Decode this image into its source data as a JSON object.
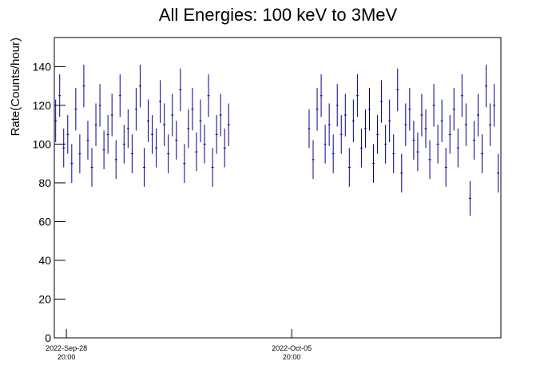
{
  "chart_data": {
    "type": "errorbar",
    "title": "All Energies:  100 keV to 3MeV",
    "ylabel": "Rate(Counts/hour)",
    "color": "#00008b",
    "x": [
      "2022-Sep-28 12:00",
      "2022-Sep-28 15:00",
      "2022-Sep-28 18:00",
      "2022-Sep-28 21:00",
      "2022-Sep-29 00:00",
      "2022-Sep-29 03:00",
      "2022-Sep-29 06:00",
      "2022-Sep-29 09:00",
      "2022-Sep-29 12:00",
      "2022-Sep-29 15:00",
      "2022-Sep-29 18:00",
      "2022-Sep-29 21:00",
      "2022-Sep-30 00:00",
      "2022-Sep-30 03:00",
      "2022-Sep-30 06:00",
      "2022-Sep-30 09:00",
      "2022-Sep-30 12:00",
      "2022-Sep-30 15:00",
      "2022-Sep-30 18:00",
      "2022-Sep-30 21:00",
      "2022-Oct-01 00:00",
      "2022-Oct-01 03:00",
      "2022-Oct-01 06:00",
      "2022-Oct-01 09:00",
      "2022-Oct-01 12:00",
      "2022-Oct-01 15:00",
      "2022-Oct-01 18:00",
      "2022-Oct-01 21:00",
      "2022-Oct-02 00:00",
      "2022-Oct-02 03:00",
      "2022-Oct-02 06:00",
      "2022-Oct-02 09:00",
      "2022-Oct-02 12:00",
      "2022-Oct-02 15:00",
      "2022-Oct-02 18:00",
      "2022-Oct-02 21:00",
      "2022-Oct-03 00:00",
      "2022-Oct-03 03:00",
      "2022-Oct-03 06:00",
      "2022-Oct-03 09:00",
      "2022-Oct-03 12:00",
      "2022-Oct-03 15:00",
      "2022-Oct-03 18:00",
      "2022-Oct-03 21:00",
      "2022-Oct-06 09:00",
      "2022-Oct-06 12:00",
      "2022-Oct-06 15:00",
      "2022-Oct-06 18:00",
      "2022-Oct-06 21:00",
      "2022-Oct-07 00:00",
      "2022-Oct-07 03:00",
      "2022-Oct-07 06:00",
      "2022-Oct-07 09:00",
      "2022-Oct-07 12:00",
      "2022-Oct-07 15:00",
      "2022-Oct-07 18:00",
      "2022-Oct-07 21:00",
      "2022-Oct-08 00:00",
      "2022-Oct-08 03:00",
      "2022-Oct-08 06:00",
      "2022-Oct-08 09:00",
      "2022-Oct-08 12:00",
      "2022-Oct-08 15:00",
      "2022-Oct-08 18:00",
      "2022-Oct-08 21:00",
      "2022-Oct-09 00:00",
      "2022-Oct-09 03:00",
      "2022-Oct-09 06:00",
      "2022-Oct-09 09:00",
      "2022-Oct-09 12:00",
      "2022-Oct-09 15:00",
      "2022-Oct-09 18:00",
      "2022-Oct-09 21:00",
      "2022-Oct-10 00:00",
      "2022-Oct-10 03:00",
      "2022-Oct-10 06:00",
      "2022-Oct-10 09:00",
      "2022-Oct-10 12:00",
      "2022-Oct-10 15:00",
      "2022-Oct-10 18:00",
      "2022-Oct-10 21:00",
      "2022-Oct-11 00:00",
      "2022-Oct-11 03:00",
      "2022-Oct-11 06:00",
      "2022-Oct-11 09:00",
      "2022-Oct-11 12:00",
      "2022-Oct-11 15:00",
      "2022-Oct-11 18:00",
      "2022-Oct-11 21:00",
      "2022-Oct-12 00:00",
      "2022-Oct-12 03:00",
      "2022-Oct-12 06:00"
    ],
    "values": [
      112,
      125,
      98,
      105,
      90,
      118,
      95,
      130,
      102,
      88,
      110,
      120,
      97,
      105,
      115,
      92,
      125,
      100,
      108,
      95,
      118,
      130,
      88,
      112,
      105,
      98,
      122,
      110,
      95,
      115,
      102,
      128,
      90,
      108,
      118,
      96,
      112,
      100,
      125,
      88,
      105,
      115,
      98,
      110,
      108,
      92,
      118,
      125,
      100,
      110,
      95,
      120,
      105,
      115,
      88,
      112,
      125,
      98,
      108,
      118,
      90,
      105,
      122,
      100,
      112,
      95,
      128,
      85,
      110,
      118,
      102,
      96,
      115,
      108,
      92,
      120,
      100,
      112,
      88,
      105,
      118,
      98,
      125,
      110,
      72,
      102,
      115,
      95,
      130,
      110,
      120,
      85
    ],
    "errors": [
      11,
      11,
      10,
      10,
      10,
      11,
      10,
      11,
      10,
      10,
      11,
      11,
      10,
      10,
      11,
      10,
      11,
      10,
      10,
      10,
      11,
      11,
      10,
      11,
      10,
      10,
      11,
      11,
      10,
      11,
      10,
      11,
      10,
      10,
      11,
      10,
      11,
      10,
      11,
      10,
      10,
      11,
      10,
      11,
      10,
      10,
      11,
      11,
      10,
      11,
      10,
      11,
      10,
      11,
      10,
      11,
      11,
      10,
      10,
      11,
      10,
      10,
      11,
      10,
      11,
      10,
      11,
      10,
      11,
      11,
      10,
      10,
      11,
      10,
      10,
      11,
      10,
      11,
      10,
      10,
      11,
      10,
      11,
      11,
      9,
      10,
      11,
      10,
      11,
      11,
      11,
      10
    ],
    "xlim": [
      "2022-Sep-28 11:00",
      "2022-Oct-12 08:00"
    ],
    "xticks": [
      {
        "value": "2022-Sep-28 20:00",
        "label": "2022-Sep-28",
        "time": "20:00"
      },
      {
        "value": "2022-Oct-05 20:00",
        "label": "2022-Oct-05",
        "time": "20:00"
      }
    ],
    "ylim": [
      0,
      155
    ],
    "yticks": [
      0,
      20,
      40,
      60,
      80,
      100,
      120,
      140
    ]
  }
}
